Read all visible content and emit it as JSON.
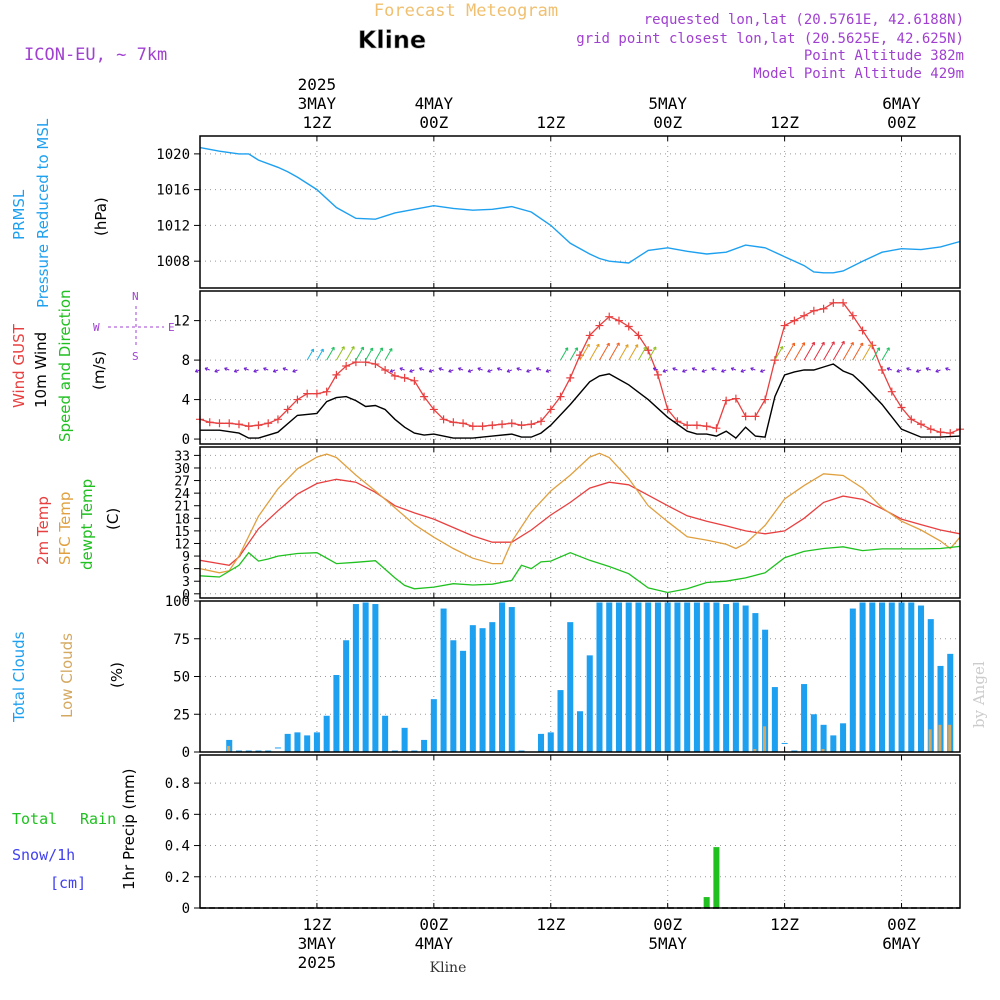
{
  "header": {
    "subtitle": "Forecast Meteogram",
    "title": "Kline",
    "model": "ICON-EU, ~ 7km",
    "info": [
      "requested lon,lat (20.5761E, 42.6188N)",
      "grid point closest lon,lat (20.5625E, 42.625N)",
      "Point Altitude 382m",
      "Model Point Altitude 429m"
    ],
    "footer_label": "Kline",
    "watermark": "by Angel"
  },
  "time_axis": {
    "start_hour": 0,
    "end_hour": 78,
    "top_labels": [
      {
        "hour": 12,
        "lines": [
          "2025",
          "3MAY",
          "12Z"
        ]
      },
      {
        "hour": 24,
        "lines": [
          "4MAY",
          "00Z"
        ]
      },
      {
        "hour": 36,
        "lines": [
          "12Z"
        ]
      },
      {
        "hour": 48,
        "lines": [
          "5MAY",
          "00Z"
        ]
      },
      {
        "hour": 60,
        "lines": [
          "12Z"
        ]
      },
      {
        "hour": 72,
        "lines": [
          "6MAY",
          "00Z"
        ]
      }
    ],
    "bottom_labels": [
      {
        "hour": 12,
        "lines": [
          "12Z",
          "3MAY",
          "2025"
        ]
      },
      {
        "hour": 24,
        "lines": [
          "00Z",
          "4MAY"
        ]
      },
      {
        "hour": 36,
        "lines": [
          "12Z"
        ]
      },
      {
        "hour": 48,
        "lines": [
          "00Z",
          "5MAY"
        ]
      },
      {
        "hour": 60,
        "lines": [
          "12Z"
        ]
      },
      {
        "hour": 72,
        "lines": [
          "00Z",
          "6MAY"
        ]
      }
    ]
  },
  "colors": {
    "pressure": "#1ea0f0",
    "gust": "#e84040",
    "wind10m": "#000000",
    "wind_label_green": "#20c020",
    "temp2m": "#e84040",
    "sfc_temp": "#e0a040",
    "dewpt": "#20c020",
    "total_clouds": "#1ea0f0",
    "low_clouds": "#d4a860",
    "rain": "#20c020",
    "snow": "#4040f0",
    "info_purple": "#a040d0",
    "title_tan": "#f0c070",
    "grid": "#999999"
  },
  "panels": {
    "pressure": {
      "labels": [
        "PRMSL",
        "Pressure Reduced to MSL"
      ],
      "unit": "(hPa)",
      "ticks": [
        "1020",
        "1016",
        "1012",
        "1008"
      ]
    },
    "wind": {
      "labels": [
        "Wind GUST",
        "10m Wind",
        "Speed and Direction"
      ],
      "unit": "(m/s)",
      "ticks": [
        "12",
        "8",
        "4",
        "0"
      ],
      "compass": {
        "n": "N",
        "s": "S",
        "w": "W",
        "e": "E"
      }
    },
    "temp": {
      "labels": [
        "2m Temp",
        "SFC Temp",
        "dewpt Temp"
      ],
      "unit": "(C)",
      "ticks": [
        "33",
        "30",
        "27",
        "24",
        "21",
        "18",
        "15",
        "12",
        "9",
        "6",
        "3",
        "0"
      ]
    },
    "clouds": {
      "labels": [
        "Total Clouds",
        "Low Clouds"
      ],
      "unit": "(%)",
      "ticks": [
        "100",
        "75",
        "50",
        "25",
        "0"
      ]
    },
    "precip": {
      "labels": [
        "Total",
        "Rain",
        "Snow/1h",
        "[cm]"
      ],
      "unit": "1hr Precip (mm)",
      "ticks": [
        "0.8",
        "0.6",
        "0.4",
        "0.2",
        "0"
      ]
    }
  },
  "chart_data": [
    {
      "type": "line",
      "title": "PRMSL",
      "ylabel": "(hPa)",
      "ylim": [
        1005,
        1022
      ],
      "series": [
        {
          "name": "PRMSL",
          "x": [
            0,
            2,
            4,
            5,
            6,
            8,
            9,
            10,
            12,
            14,
            16,
            18,
            20,
            22,
            24,
            26,
            28,
            30,
            32,
            34,
            36,
            38,
            40,
            41,
            42,
            44,
            46,
            48,
            50,
            52,
            54,
            56,
            58,
            60,
            62,
            63,
            64,
            65,
            66,
            68,
            70,
            72,
            74,
            76,
            78
          ],
          "values": [
            1020.7,
            1020.3,
            1020.0,
            1020.0,
            1019.3,
            1018.5,
            1018.0,
            1017.4,
            1016.0,
            1014.0,
            1012.8,
            1012.7,
            1013.4,
            1013.8,
            1014.2,
            1013.9,
            1013.7,
            1013.8,
            1014.1,
            1013.5,
            1012.0,
            1010.0,
            1008.8,
            1008.3,
            1008.0,
            1007.8,
            1009.2,
            1009.5,
            1009.1,
            1008.8,
            1009.0,
            1009.8,
            1009.5,
            1008.5,
            1007.5,
            1006.8,
            1006.7,
            1006.7,
            1006.9,
            1008.0,
            1009.0,
            1009.4,
            1009.3,
            1009.6,
            1010.2
          ]
        }
      ]
    },
    {
      "type": "line",
      "title": "Wind",
      "ylabel": "(m/s)",
      "ylim": [
        -0.5,
        15
      ],
      "series": [
        {
          "name": "Wind GUST",
          "x": [
            0,
            1,
            2,
            3,
            4,
            5,
            6,
            7,
            8,
            9,
            10,
            11,
            12,
            13,
            14,
            15,
            16,
            17,
            18,
            19,
            20,
            21,
            22,
            23,
            24,
            25,
            26,
            27,
            28,
            29,
            30,
            31,
            32,
            33,
            34,
            35,
            36,
            37,
            38,
            39,
            40,
            41,
            42,
            43,
            44,
            45,
            46,
            47,
            48,
            49,
            50,
            51,
            52,
            53,
            54,
            55,
            56,
            57,
            58,
            59,
            60,
            61,
            62,
            63,
            64,
            65,
            66,
            67,
            68,
            69,
            70,
            71,
            72,
            73,
            74,
            75,
            76,
            77,
            78
          ],
          "values": [
            2.0,
            1.7,
            1.6,
            1.6,
            1.5,
            1.3,
            1.4,
            1.6,
            2.0,
            3.0,
            4.0,
            4.6,
            4.6,
            4.8,
            6.5,
            7.4,
            7.8,
            7.8,
            7.6,
            7.0,
            6.4,
            6.2,
            5.9,
            4.3,
            3.0,
            2.0,
            1.7,
            1.6,
            1.3,
            1.3,
            1.4,
            1.5,
            1.6,
            1.4,
            1.5,
            1.8,
            3.0,
            4.3,
            6.2,
            8.5,
            10.5,
            11.5,
            12.4,
            12.0,
            11.4,
            10.5,
            9.0,
            6.5,
            3.0,
            1.8,
            1.4,
            1.4,
            1.3,
            1.1,
            3.9,
            4.1,
            2.3,
            2.3,
            4.0,
            8.0,
            11.5,
            12.0,
            12.5,
            13.0,
            13.2,
            13.8,
            13.8,
            12.5,
            11.0,
            9.5,
            7.0,
            4.8,
            3.2,
            2.0,
            1.5,
            1.0,
            0.7,
            0.6,
            1.0
          ]
        },
        {
          "name": "10m Wind",
          "x": [
            0,
            2,
            4,
            5,
            6,
            8,
            10,
            12,
            13,
            14,
            15,
            16,
            17,
            18,
            19,
            20,
            21,
            22,
            23,
            24,
            26,
            28,
            30,
            32,
            33,
            34,
            35,
            36,
            38,
            40,
            41,
            42,
            44,
            46,
            48,
            50,
            51,
            52,
            53,
            54,
            55,
            56,
            57,
            58,
            59,
            60,
            61,
            62,
            63,
            64,
            65,
            66,
            67,
            68,
            70,
            72,
            74,
            76,
            78
          ],
          "values": [
            0.9,
            0.9,
            0.6,
            0.1,
            0.1,
            0.7,
            2.4,
            2.6,
            3.8,
            4.2,
            4.3,
            3.9,
            3.3,
            3.4,
            3.0,
            2.0,
            1.2,
            0.6,
            0.4,
            0.5,
            0.1,
            0.1,
            0.3,
            0.5,
            0.2,
            0.2,
            0.6,
            1.4,
            3.5,
            5.8,
            6.4,
            6.6,
            5.5,
            4.0,
            2.2,
            0.8,
            0.5,
            0.5,
            0.3,
            0.8,
            0.1,
            1.2,
            0.3,
            0.2,
            4.3,
            6.5,
            6.8,
            7.0,
            7.0,
            7.3,
            7.6,
            6.9,
            6.5,
            5.6,
            3.5,
            1.0,
            0.2,
            0.2,
            0.3
          ]
        }
      ]
    },
    {
      "type": "line",
      "title": "Temperature",
      "ylabel": "(C)",
      "ylim": [
        -1,
        35
      ],
      "series": [
        {
          "name": "2m Temp",
          "x": [
            0,
            2,
            3,
            4,
            6,
            8,
            10,
            12,
            14,
            16,
            18,
            20,
            22,
            24,
            26,
            28,
            30,
            32,
            34,
            36,
            38,
            40,
            42,
            44,
            46,
            48,
            50,
            52,
            54,
            56,
            58,
            60,
            62,
            64,
            66,
            68,
            70,
            72,
            74,
            76,
            78
          ],
          "values": [
            8,
            7.2,
            6.8,
            8.8,
            15.5,
            19.8,
            23.8,
            26.3,
            27.3,
            26.6,
            24.2,
            21.0,
            19.3,
            17.8,
            15.8,
            13.8,
            12.3,
            12.3,
            15.2,
            18.8,
            21.8,
            25.2,
            26.6,
            26.0,
            23.5,
            21.0,
            18.6,
            17.3,
            16.2,
            15.0,
            14.3,
            15.0,
            18.0,
            21.8,
            23.3,
            22.5,
            20.3,
            17.8,
            16.5,
            15.2,
            14.3
          ]
        },
        {
          "name": "SFC Temp",
          "x": [
            0,
            2,
            3,
            4,
            6,
            8,
            10,
            12,
            13,
            14,
            16,
            18,
            20,
            22,
            24,
            26,
            28,
            30,
            31,
            32,
            34,
            36,
            38,
            40,
            41,
            42,
            44,
            46,
            48,
            50,
            52,
            54,
            55,
            56,
            58,
            60,
            62,
            64,
            66,
            68,
            70,
            72,
            74,
            76,
            77,
            78
          ],
          "values": [
            6.0,
            5.0,
            5.5,
            9.0,
            18.5,
            25.0,
            29.8,
            32.6,
            33.3,
            32.5,
            28.3,
            24.5,
            20.5,
            16.5,
            13.5,
            10.8,
            8.5,
            7.2,
            7.2,
            12.5,
            19.5,
            24.5,
            28.3,
            32.6,
            33.5,
            32.5,
            27.5,
            21.0,
            17.2,
            13.6,
            12.8,
            11.8,
            10.8,
            12.0,
            16.3,
            22.6,
            25.8,
            28.6,
            28.2,
            25.2,
            20.5,
            17.3,
            15.2,
            12.6,
            10.8,
            13.5
          ]
        },
        {
          "name": "dewpt Temp",
          "x": [
            0,
            2,
            4,
            5,
            6,
            7,
            8,
            10,
            12,
            14,
            16,
            18,
            20,
            21,
            22,
            24,
            26,
            28,
            30,
            32,
            33,
            34,
            35,
            36,
            38,
            40,
            42,
            44,
            46,
            48,
            50,
            52,
            54,
            56,
            58,
            60,
            62,
            64,
            66,
            68,
            70,
            72,
            74,
            76,
            78
          ],
          "values": [
            4.3,
            4.0,
            6.8,
            9.8,
            7.8,
            8.3,
            9.0,
            9.6,
            9.8,
            7.2,
            7.5,
            7.9,
            3.8,
            2.0,
            1.2,
            1.6,
            2.4,
            2.1,
            2.3,
            3.2,
            6.8,
            6.0,
            7.6,
            7.8,
            9.8,
            8.0,
            6.5,
            4.8,
            1.4,
            0.3,
            1.2,
            2.7,
            3.0,
            3.8,
            5.0,
            8.6,
            10.1,
            10.8,
            11.2,
            10.3,
            10.7,
            10.7,
            10.7,
            10.8,
            11.3
          ]
        }
      ]
    },
    {
      "type": "bar",
      "title": "Clouds",
      "ylabel": "(%)",
      "ylim": [
        0,
        100
      ],
      "series": [
        {
          "name": "Total Clouds",
          "x": [
            3,
            4,
            5,
            6,
            7,
            8,
            9,
            10,
            11,
            12,
            13,
            14,
            15,
            16,
            17,
            18,
            19,
            20,
            21,
            22,
            23,
            24,
            25,
            26,
            27,
            28,
            29,
            30,
            31,
            32,
            33,
            34,
            35,
            36,
            37,
            38,
            39,
            40,
            41,
            42,
            43,
            44,
            45,
            46,
            47,
            48,
            49,
            50,
            51,
            52,
            53,
            54,
            55,
            56,
            57,
            58,
            59,
            60,
            61,
            62,
            63,
            64,
            65,
            66,
            67,
            68,
            69,
            70,
            71,
            72,
            73,
            74,
            75,
            76,
            77
          ],
          "values": [
            8,
            1,
            1,
            1,
            1,
            3,
            12,
            13,
            11,
            13,
            24,
            51,
            74,
            98,
            99,
            98,
            24,
            1,
            16,
            1,
            8,
            35,
            95,
            74,
            67,
            84,
            82,
            86,
            99,
            96,
            1,
            0,
            12,
            13,
            41,
            86,
            27,
            64,
            99,
            99,
            99,
            99,
            99,
            99,
            99,
            99,
            99,
            99,
            99,
            99,
            99,
            98,
            99,
            97,
            92,
            81,
            43,
            6,
            1,
            45,
            25,
            18,
            11,
            19,
            95,
            99,
            99,
            99,
            99,
            99,
            99,
            97,
            88,
            57,
            65
          ]
        },
        {
          "name": "Low Clouds",
          "x": [
            3,
            57,
            58,
            64,
            75,
            76,
            77
          ],
          "values": [
            4,
            2,
            17,
            2,
            15,
            18,
            18
          ]
        }
      ]
    },
    {
      "type": "bar",
      "title": "1hr Precip",
      "ylabel": "1hr Precip (mm)",
      "ylim": [
        0,
        0.98
      ],
      "series": [
        {
          "name": "Total Rain",
          "x": [
            52,
            53
          ],
          "values": [
            0.07,
            0.39
          ]
        }
      ]
    }
  ]
}
